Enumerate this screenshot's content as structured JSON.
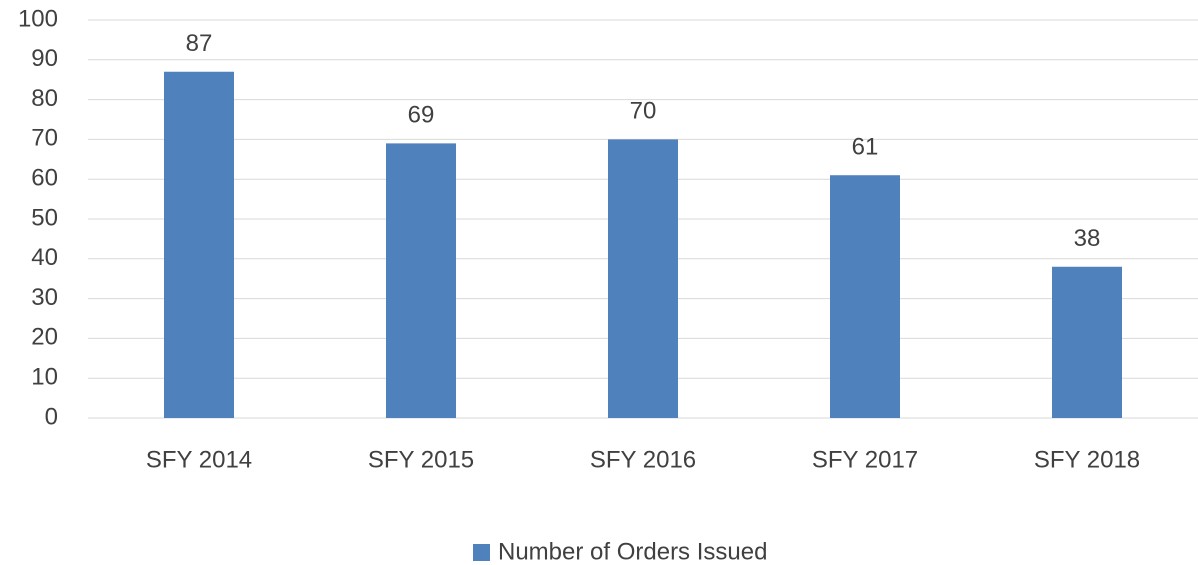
{
  "chart_data": {
    "type": "bar",
    "categories": [
      "SFY 2014",
      "SFY 2015",
      "SFY 2016",
      "SFY 2017",
      "SFY 2018"
    ],
    "series": [
      {
        "name": "Number of Orders Issued",
        "color": "#4f81bd",
        "values": [
          87,
          69,
          70,
          61,
          38
        ]
      }
    ],
    "ylim": [
      0,
      100
    ],
    "yticks": [
      0,
      10,
      20,
      30,
      40,
      50,
      60,
      70,
      80,
      90,
      100
    ],
    "grid": true,
    "legend": "bottom"
  }
}
